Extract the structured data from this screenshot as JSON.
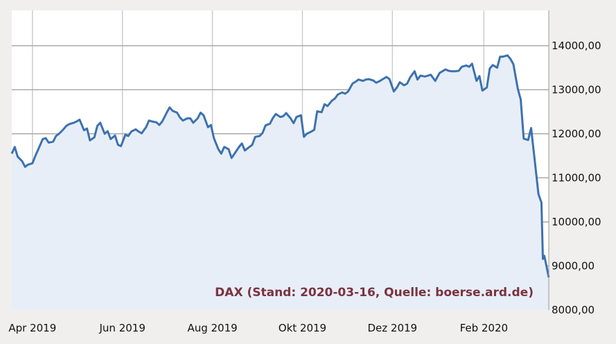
{
  "chart_data": {
    "type": "area",
    "caption": "DAX (Stand: 2020-03-16, Quelle: boerse.ard.de)",
    "y_ticks": [
      8000,
      9000,
      10000,
      11000,
      12000,
      13000,
      14000
    ],
    "y_tick_labels": [
      "8000,00",
      "9000,00",
      "10000,00",
      "11000,00",
      "12000,00",
      "13000,00",
      "14000,00"
    ],
    "x_ticks": [
      "2019-04-01",
      "2019-06-01",
      "2019-08-01",
      "2019-10-01",
      "2019-12-01",
      "2020-02-01"
    ],
    "x_tick_labels": [
      "Apr 2019",
      "Jun 2019",
      "Aug 2019",
      "Okt 2019",
      "Dez 2019",
      "Feb 2020"
    ],
    "x_range": [
      "2019-03-18",
      "2020-03-16"
    ],
    "y_range": [
      8000,
      14800
    ],
    "grid": true,
    "colors": {
      "line": "#3c72ae",
      "fill": "#e8eef7",
      "caption": "#7a3240",
      "grid": "#aaaaaa",
      "background": "#ffffff",
      "frame": "#f0efee"
    },
    "series": [
      {
        "values": [
          [
            "2019-03-18",
            11550
          ],
          [
            "2019-03-20",
            11700
          ],
          [
            "2019-03-22",
            11480
          ],
          [
            "2019-03-25",
            11380
          ],
          [
            "2019-03-27",
            11250
          ],
          [
            "2019-03-29",
            11300
          ],
          [
            "2019-04-01",
            11330
          ],
          [
            "2019-04-03",
            11500
          ],
          [
            "2019-04-05",
            11650
          ],
          [
            "2019-04-08",
            11880
          ],
          [
            "2019-04-10",
            11900
          ],
          [
            "2019-04-12",
            11800
          ],
          [
            "2019-04-15",
            11820
          ],
          [
            "2019-04-17",
            11950
          ],
          [
            "2019-04-19",
            12000
          ],
          [
            "2019-04-22",
            12100
          ],
          [
            "2019-04-24",
            12180
          ],
          [
            "2019-04-26",
            12220
          ],
          [
            "2019-04-29",
            12250
          ],
          [
            "2019-05-01",
            12280
          ],
          [
            "2019-05-03",
            12320
          ],
          [
            "2019-05-06",
            12080
          ],
          [
            "2019-05-08",
            12120
          ],
          [
            "2019-05-10",
            11850
          ],
          [
            "2019-05-13",
            11920
          ],
          [
            "2019-05-15",
            12180
          ],
          [
            "2019-05-17",
            12250
          ],
          [
            "2019-05-20",
            12000
          ],
          [
            "2019-05-22",
            12060
          ],
          [
            "2019-05-24",
            11880
          ],
          [
            "2019-05-27",
            11960
          ],
          [
            "2019-05-29",
            11750
          ],
          [
            "2019-05-31",
            11720
          ],
          [
            "2019-06-03",
            11980
          ],
          [
            "2019-06-05",
            11950
          ],
          [
            "2019-06-07",
            12050
          ],
          [
            "2019-06-10",
            12100
          ],
          [
            "2019-06-12",
            12050
          ],
          [
            "2019-06-14",
            12010
          ],
          [
            "2019-06-17",
            12150
          ],
          [
            "2019-06-19",
            12300
          ],
          [
            "2019-06-21",
            12280
          ],
          [
            "2019-06-24",
            12260
          ],
          [
            "2019-06-26",
            12200
          ],
          [
            "2019-06-28",
            12280
          ],
          [
            "2019-07-01",
            12480
          ],
          [
            "2019-07-03",
            12600
          ],
          [
            "2019-07-05",
            12520
          ],
          [
            "2019-07-08",
            12480
          ],
          [
            "2019-07-10",
            12370
          ],
          [
            "2019-07-12",
            12300
          ],
          [
            "2019-07-15",
            12350
          ],
          [
            "2019-07-17",
            12350
          ],
          [
            "2019-07-19",
            12250
          ],
          [
            "2019-07-22",
            12350
          ],
          [
            "2019-07-24",
            12480
          ],
          [
            "2019-07-26",
            12420
          ],
          [
            "2019-07-29",
            12150
          ],
          [
            "2019-07-31",
            12200
          ],
          [
            "2019-08-02",
            11900
          ],
          [
            "2019-08-05",
            11650
          ],
          [
            "2019-08-07",
            11550
          ],
          [
            "2019-08-09",
            11700
          ],
          [
            "2019-08-12",
            11650
          ],
          [
            "2019-08-14",
            11450
          ],
          [
            "2019-08-16",
            11550
          ],
          [
            "2019-08-19",
            11700
          ],
          [
            "2019-08-21",
            11780
          ],
          [
            "2019-08-23",
            11620
          ],
          [
            "2019-08-26",
            11700
          ],
          [
            "2019-08-28",
            11750
          ],
          [
            "2019-08-30",
            11930
          ],
          [
            "2019-09-02",
            11950
          ],
          [
            "2019-09-04",
            12020
          ],
          [
            "2019-09-06",
            12190
          ],
          [
            "2019-09-09",
            12230
          ],
          [
            "2019-09-11",
            12360
          ],
          [
            "2019-09-13",
            12450
          ],
          [
            "2019-09-16",
            12380
          ],
          [
            "2019-09-18",
            12400
          ],
          [
            "2019-09-20",
            12470
          ],
          [
            "2019-09-23",
            12350
          ],
          [
            "2019-09-25",
            12240
          ],
          [
            "2019-09-27",
            12380
          ],
          [
            "2019-09-30",
            12420
          ],
          [
            "2019-10-02",
            11930
          ],
          [
            "2019-10-04",
            12000
          ],
          [
            "2019-10-07",
            12050
          ],
          [
            "2019-10-09",
            12090
          ],
          [
            "2019-10-11",
            12510
          ],
          [
            "2019-10-14",
            12490
          ],
          [
            "2019-10-16",
            12670
          ],
          [
            "2019-10-18",
            12630
          ],
          [
            "2019-10-21",
            12750
          ],
          [
            "2019-10-23",
            12800
          ],
          [
            "2019-10-25",
            12890
          ],
          [
            "2019-10-28",
            12940
          ],
          [
            "2019-10-30",
            12910
          ],
          [
            "2019-11-01",
            12960
          ],
          [
            "2019-11-04",
            13140
          ],
          [
            "2019-11-06",
            13180
          ],
          [
            "2019-11-08",
            13230
          ],
          [
            "2019-11-11",
            13200
          ],
          [
            "2019-11-13",
            13230
          ],
          [
            "2019-11-15",
            13240
          ],
          [
            "2019-11-18",
            13210
          ],
          [
            "2019-11-20",
            13160
          ],
          [
            "2019-11-22",
            13190
          ],
          [
            "2019-11-25",
            13250
          ],
          [
            "2019-11-27",
            13290
          ],
          [
            "2019-11-29",
            13240
          ],
          [
            "2019-12-02",
            12960
          ],
          [
            "2019-12-04",
            13050
          ],
          [
            "2019-12-06",
            13170
          ],
          [
            "2019-12-09",
            13100
          ],
          [
            "2019-12-11",
            13140
          ],
          [
            "2019-12-13",
            13280
          ],
          [
            "2019-12-16",
            13420
          ],
          [
            "2019-12-18",
            13230
          ],
          [
            "2019-12-20",
            13320
          ],
          [
            "2019-12-23",
            13300
          ],
          [
            "2019-12-27",
            13340
          ],
          [
            "2019-12-30",
            13200
          ],
          [
            "2020-01-02",
            13380
          ],
          [
            "2020-01-06",
            13460
          ],
          [
            "2020-01-08",
            13430
          ],
          [
            "2020-01-10",
            13420
          ],
          [
            "2020-01-13",
            13420
          ],
          [
            "2020-01-15",
            13430
          ],
          [
            "2020-01-17",
            13520
          ],
          [
            "2020-01-20",
            13550
          ],
          [
            "2020-01-22",
            13520
          ],
          [
            "2020-01-24",
            13590
          ],
          [
            "2020-01-27",
            13200
          ],
          [
            "2020-01-29",
            13310
          ],
          [
            "2020-01-31",
            12980
          ],
          [
            "2020-02-03",
            13050
          ],
          [
            "2020-02-05",
            13480
          ],
          [
            "2020-02-07",
            13560
          ],
          [
            "2020-02-10",
            13500
          ],
          [
            "2020-02-12",
            13750
          ],
          [
            "2020-02-14",
            13750
          ],
          [
            "2020-02-17",
            13780
          ],
          [
            "2020-02-19",
            13700
          ],
          [
            "2020-02-21",
            13580
          ],
          [
            "2020-02-24",
            13020
          ],
          [
            "2020-02-26",
            12780
          ],
          [
            "2020-02-28",
            11890
          ],
          [
            "2020-03-02",
            11860
          ],
          [
            "2020-03-04",
            12130
          ],
          [
            "2020-03-06",
            11540
          ],
          [
            "2020-03-09",
            10630
          ],
          [
            "2020-03-11",
            10440
          ],
          [
            "2020-03-12",
            9160
          ],
          [
            "2020-03-13",
            9230
          ],
          [
            "2020-03-16",
            8740
          ]
        ]
      }
    ]
  }
}
